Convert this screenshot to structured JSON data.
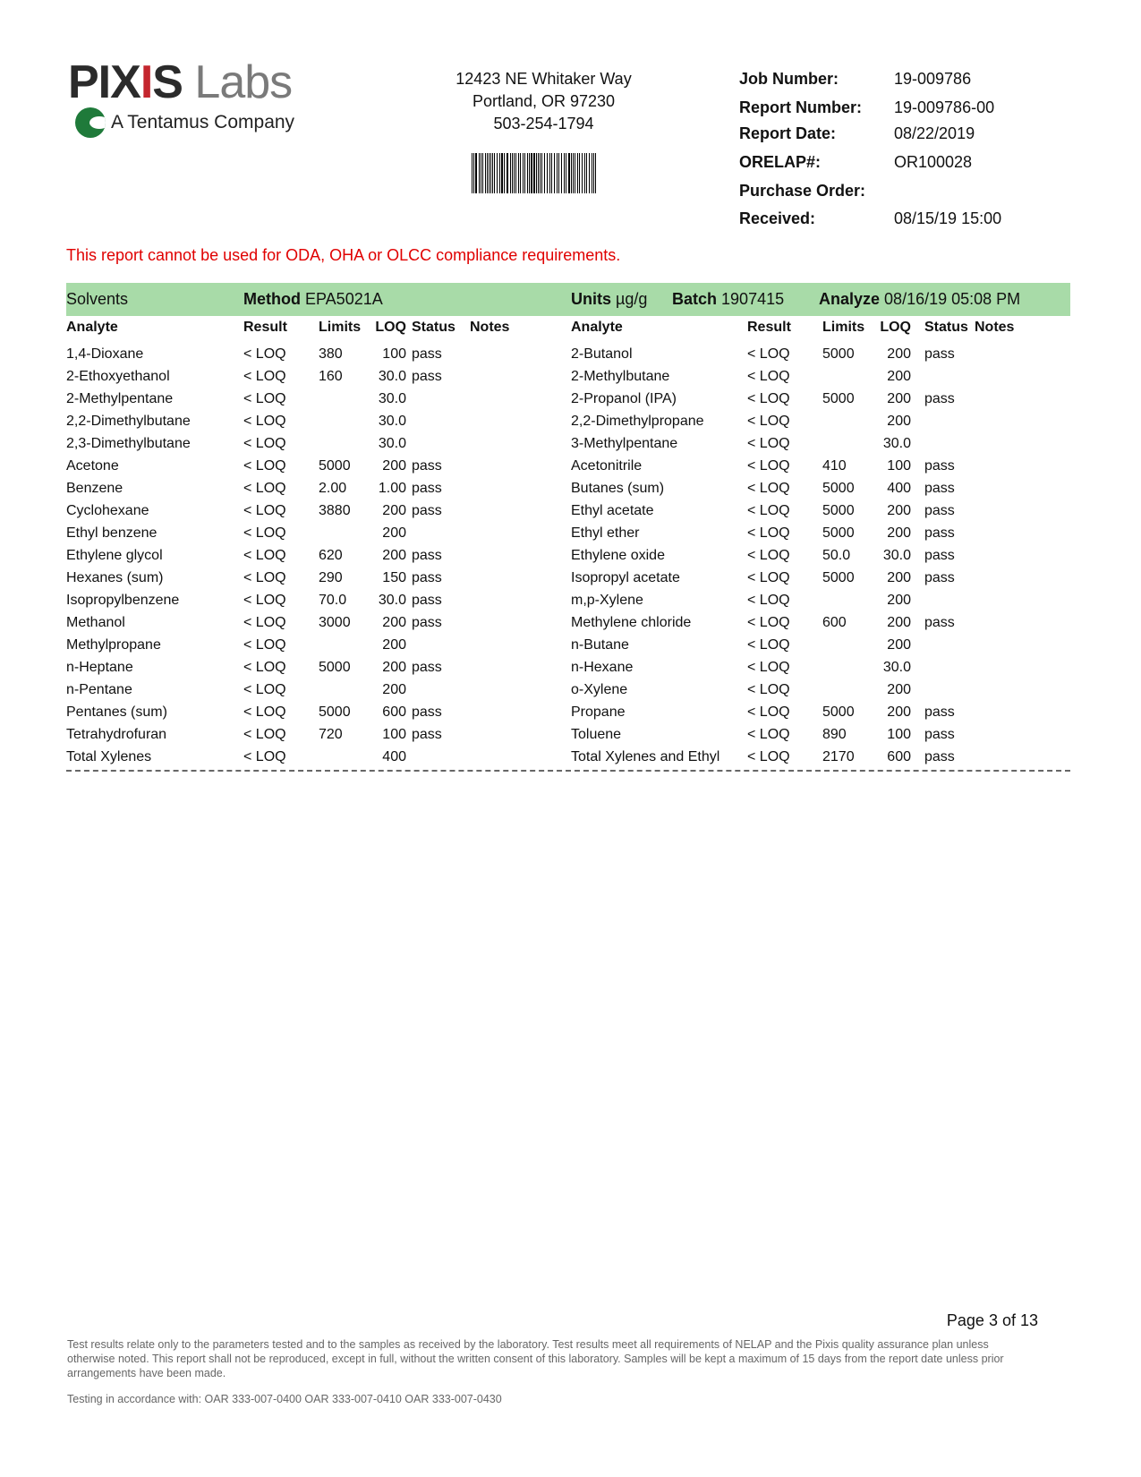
{
  "logo": {
    "brand_a": "PIX",
    "brand_x": "I",
    "brand_b": "S",
    "brand_c": "Labs",
    "tagline": "A Tentamus Company"
  },
  "address": {
    "line1": "12423 NE Whitaker Way",
    "line2": "Portland, OR 97230",
    "phone": "503-254-1794"
  },
  "info": [
    {
      "label": "Job Number:",
      "value": "19-009786"
    },
    {
      "label": "Report Number:",
      "value": "19-009786-00"
    },
    {
      "label": "Report Date:",
      "value": "08/22/2019"
    },
    {
      "label": "ORELAP#:",
      "value": "OR100028"
    },
    {
      "label": "Purchase Order:",
      "value": ""
    },
    {
      "label": "Received:",
      "value": "08/15/19  15:00"
    }
  ],
  "warning": "This report cannot be used for ODA, OHA or OLCC compliance requirements.",
  "band": {
    "section": "Solvents",
    "method_label": "Method",
    "method": "EPA5021A",
    "units_label": "Units",
    "units": "µg/g",
    "batch_label": "Batch",
    "batch": "1907415",
    "analyze_label": "Analyze",
    "analyze": "08/16/19  05:08 PM",
    "color": "#a8dba8"
  },
  "headers": {
    "analyte": "Analyte",
    "result": "Result",
    "limits": "Limits",
    "loq": "LOQ",
    "status": "Status",
    "notes": "Notes"
  },
  "left_rows": [
    [
      "1,4-Dioxane",
      "< LOQ",
      "380",
      "100",
      "pass"
    ],
    [
      "2-Ethoxyethanol",
      "< LOQ",
      "160",
      "30.0",
      "pass"
    ],
    [
      "2-Methylpentane",
      "< LOQ",
      "",
      "30.0",
      ""
    ],
    [
      "2,2-Dimethylbutane",
      "< LOQ",
      "",
      "30.0",
      ""
    ],
    [
      "2,3-Dimethylbutane",
      "< LOQ",
      "",
      "30.0",
      ""
    ],
    [
      "Acetone",
      "< LOQ",
      "5000",
      "200",
      "pass"
    ],
    [
      "Benzene",
      "< LOQ",
      "2.00",
      "1.00",
      "pass"
    ],
    [
      "Cyclohexane",
      "< LOQ",
      "3880",
      "200",
      "pass"
    ],
    [
      "Ethyl benzene",
      "< LOQ",
      "",
      "200",
      ""
    ],
    [
      "Ethylene glycol",
      "< LOQ",
      "620",
      "200",
      "pass"
    ],
    [
      "Hexanes (sum)",
      "< LOQ",
      "290",
      "150",
      "pass"
    ],
    [
      "Isopropylbenzene",
      "< LOQ",
      "70.0",
      "30.0",
      "pass"
    ],
    [
      "Methanol",
      "< LOQ",
      "3000",
      "200",
      "pass"
    ],
    [
      "Methylpropane",
      "< LOQ",
      "",
      "200",
      ""
    ],
    [
      "n-Heptane",
      "< LOQ",
      "5000",
      "200",
      "pass"
    ],
    [
      "n-Pentane",
      "< LOQ",
      "",
      "200",
      ""
    ],
    [
      "Pentanes (sum)",
      "< LOQ",
      "5000",
      "600",
      "pass"
    ],
    [
      "Tetrahydrofuran",
      "< LOQ",
      "720",
      "100",
      "pass"
    ],
    [
      "Total Xylenes",
      "< LOQ",
      "",
      "400",
      ""
    ]
  ],
  "right_rows": [
    [
      "2-Butanol",
      "< LOQ",
      "5000",
      "200",
      "pass"
    ],
    [
      "2-Methylbutane",
      "< LOQ",
      "",
      "200",
      ""
    ],
    [
      "2-Propanol (IPA)",
      "< LOQ",
      "5000",
      "200",
      "pass"
    ],
    [
      "2,2-Dimethylpropane",
      "< LOQ",
      "",
      "200",
      ""
    ],
    [
      "3-Methylpentane",
      "< LOQ",
      "",
      "30.0",
      ""
    ],
    [
      "Acetonitrile",
      "< LOQ",
      "410",
      "100",
      "pass"
    ],
    [
      "Butanes (sum)",
      "< LOQ",
      "5000",
      "400",
      "pass"
    ],
    [
      "Ethyl acetate",
      "< LOQ",
      "5000",
      "200",
      "pass"
    ],
    [
      "Ethyl ether",
      "< LOQ",
      "5000",
      "200",
      "pass"
    ],
    [
      "Ethylene oxide",
      "< LOQ",
      "50.0",
      "30.0",
      "pass"
    ],
    [
      "Isopropyl acetate",
      "< LOQ",
      "5000",
      "200",
      "pass"
    ],
    [
      "m,p-Xylene",
      "< LOQ",
      "",
      "200",
      ""
    ],
    [
      "Methylene chloride",
      "< LOQ",
      "600",
      "200",
      "pass"
    ],
    [
      "n-Butane",
      "< LOQ",
      "",
      "200",
      ""
    ],
    [
      "n-Hexane",
      "< LOQ",
      "",
      "30.0",
      ""
    ],
    [
      "o-Xylene",
      "< LOQ",
      "",
      "200",
      ""
    ],
    [
      "Propane",
      "< LOQ",
      "5000",
      "200",
      "pass"
    ],
    [
      "Toluene",
      "< LOQ",
      "890",
      "100",
      "pass"
    ],
    [
      "Total Xylenes and Ethyl",
      "< LOQ",
      "2170",
      "600",
      "pass"
    ]
  ],
  "page": "Page 3 of 13",
  "footer": "Test results relate only to the parameters tested and to the samples as received by the laboratory. Test results meet all requirements of NELAP and the Pixis quality assurance plan unless otherwise noted. This report shall not be reproduced, except in full, without the written consent of this laboratory. Samples will be kept a maximum of 15 days from the report date unless prior arrangements have been made.",
  "testing": "Testing in accordance with:  OAR 333-007-0400 OAR 333-007-0410  OAR 333-007-0430"
}
